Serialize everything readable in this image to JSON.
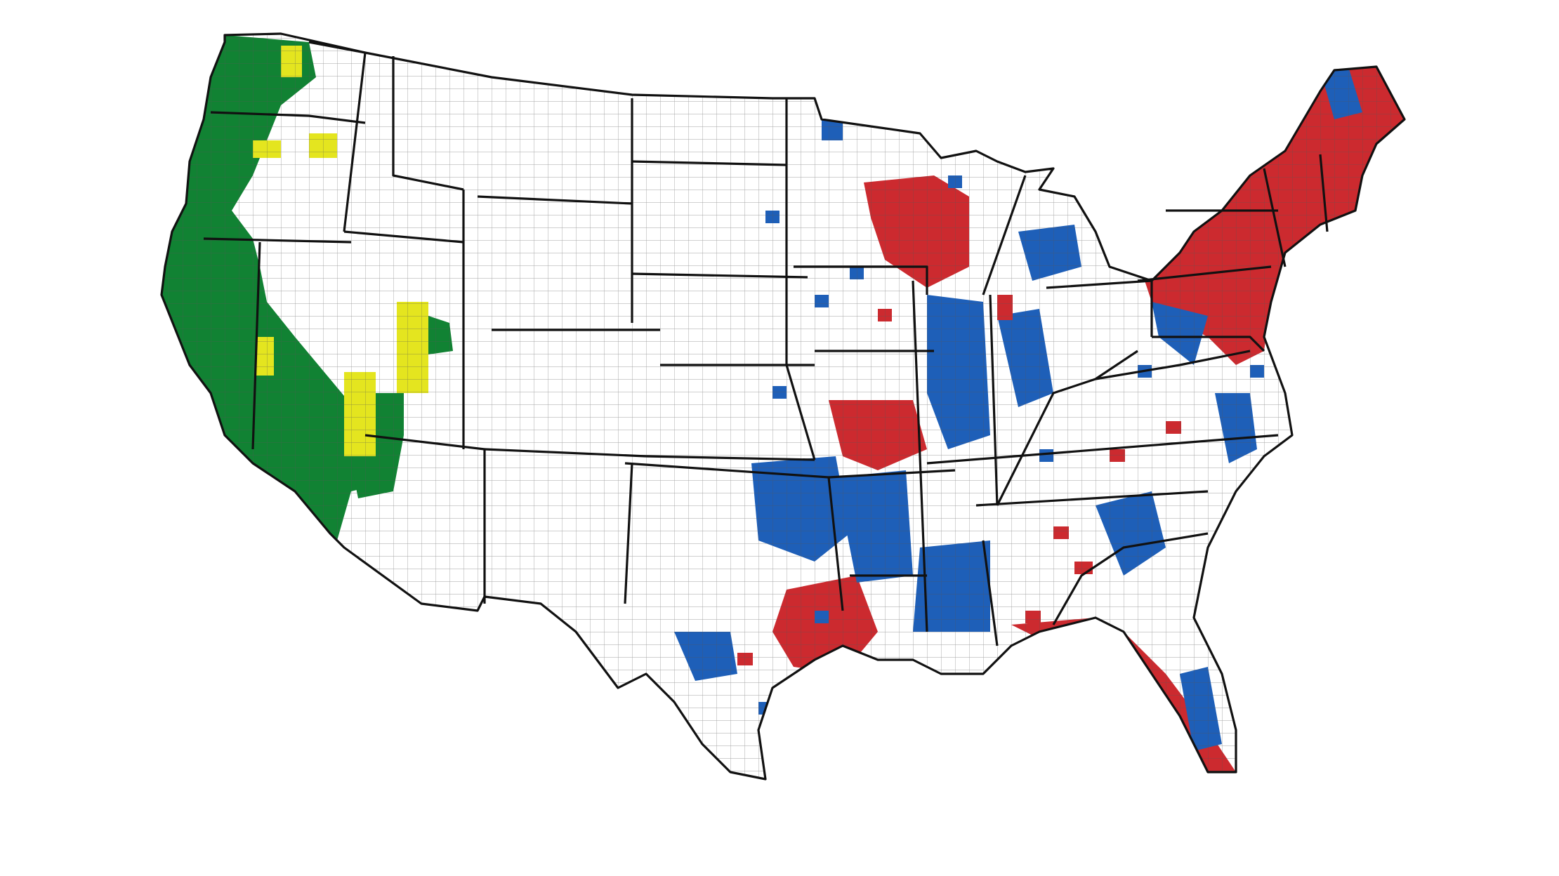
{
  "map": {
    "title": "",
    "colors": {
      "green": "#118233",
      "yellow": "#e4e51f",
      "blue": "#1e5fb8",
      "red": "#cc2a2f",
      "background": "#ffffff",
      "border": "#111111"
    }
  }
}
